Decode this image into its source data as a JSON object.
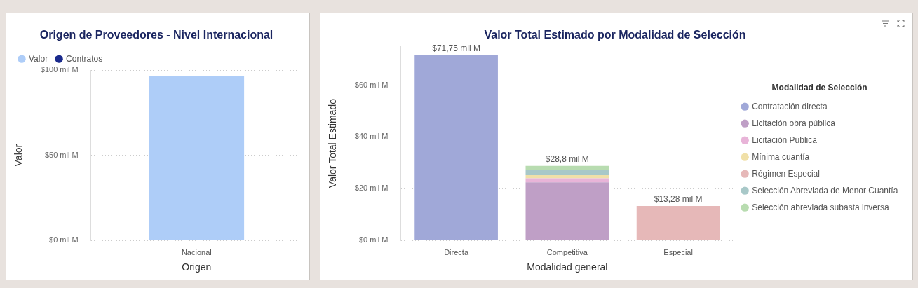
{
  "chart_data": [
    {
      "type": "bar",
      "title": "Origen de Proveedores - Nivel Internacional",
      "xlabel": "Origen",
      "ylabel": "Valor",
      "categories": [
        "Nacional"
      ],
      "series": [
        {
          "name": "Valor",
          "color": "#aecdf8",
          "values": [
            96.5
          ]
        },
        {
          "name": "Contratos",
          "color": "#1a2a8c",
          "values": [
            null
          ]
        }
      ],
      "ylim": [
        0,
        100
      ],
      "yticks": [
        {
          "value": 0,
          "label": "$0 mil M"
        },
        {
          "value": 50,
          "label": "$50 mil M"
        },
        {
          "value": 100,
          "label": "$100 mil M"
        }
      ],
      "grid": "y",
      "legend": "top left"
    },
    {
      "type": "bar",
      "title": "Valor Total Estimado por Modalidad de Selección",
      "xlabel": "Modalidad general",
      "ylabel": "Valor Total Estimado",
      "legend_title": "Modalidad de Selección",
      "categories": [
        "Directa",
        "Competitiva",
        "Especial"
      ],
      "stacked": true,
      "series": [
        {
          "name": "Contratación directa",
          "color": "#a0a8d8",
          "values": [
            71.75,
            null,
            null
          ]
        },
        {
          "name": "Licitación obra pública",
          "color": "#bf9fc6",
          "values": [
            null,
            22.4,
            null
          ]
        },
        {
          "name": "Licitación Pública",
          "color": "#e8b4d8",
          "values": [
            null,
            1.6,
            null
          ]
        },
        {
          "name": "Mínima cuantía",
          "color": "#f0e0a8",
          "values": [
            null,
            1.2,
            null
          ]
        },
        {
          "name": "Régimen Especial",
          "color": "#e6b8b8",
          "values": [
            null,
            null,
            13.28
          ]
        },
        {
          "name": "Selección Abreviada de Menor Cuantía",
          "color": "#a8c8c8",
          "values": [
            null,
            2.2,
            null
          ]
        },
        {
          "name": "Selección abreviada subasta inversa",
          "color": "#b8dcb0",
          "values": [
            null,
            1.4,
            null
          ]
        }
      ],
      "totals": [
        "$71,75 mil M",
        "$28,8 mil M",
        "$13,28 mil M"
      ],
      "ylim": [
        0,
        75
      ],
      "yticks": [
        {
          "value": 0,
          "label": "$0 mil M"
        },
        {
          "value": 20,
          "label": "$20 mil M"
        },
        {
          "value": 40,
          "label": "$40 mil M"
        },
        {
          "value": 60,
          "label": "$60 mil M"
        }
      ],
      "grid": "y",
      "legend": "right"
    }
  ]
}
